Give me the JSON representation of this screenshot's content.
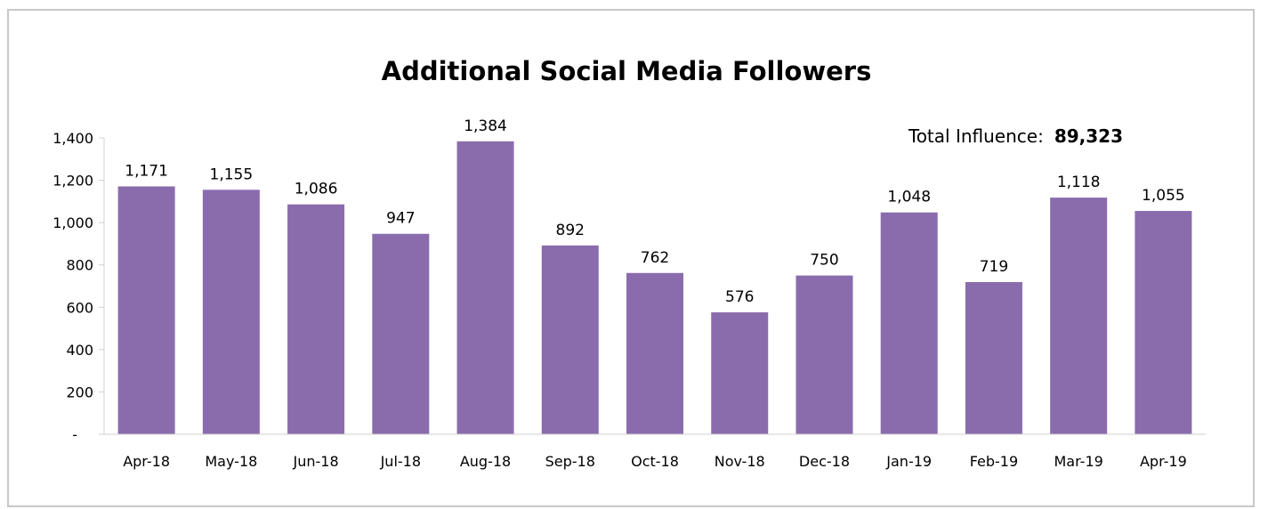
{
  "chart_data": {
    "type": "bar",
    "title": "Additional Social Media Followers",
    "xlabel": "",
    "ylabel": "",
    "categories": [
      "Apr-18",
      "May-18",
      "Jun-18",
      "Jul-18",
      "Aug-18",
      "Sep-18",
      "Oct-18",
      "Nov-18",
      "Dec-18",
      "Jan-19",
      "Feb-19",
      "Mar-19",
      "Apr-19"
    ],
    "values": [
      1171,
      1155,
      1086,
      947,
      1384,
      892,
      762,
      576,
      750,
      1048,
      719,
      1118,
      1055
    ],
    "data_labels": [
      "1,171",
      "1,155",
      "1,086",
      "947",
      "1,384",
      "892",
      "762",
      "576",
      "750",
      "1,048",
      "719",
      "1,118",
      "1,055"
    ],
    "ylim": [
      0,
      1400
    ],
    "y_ticks": [
      {
        "value": 0,
        "label": "-"
      },
      {
        "value": 200,
        "label": "200"
      },
      {
        "value": 400,
        "label": "400"
      },
      {
        "value": 600,
        "label": "600"
      },
      {
        "value": 800,
        "label": "800"
      },
      {
        "value": 1000,
        "label": "1,000"
      },
      {
        "value": 1200,
        "label": "1,200"
      },
      {
        "value": 1400,
        "label": "1,400"
      }
    ],
    "grid": false,
    "legend": "none",
    "bar_color": "#8a6cad",
    "annotation": {
      "label": "Total Influence:",
      "value": "89,323",
      "placement": "top-right"
    }
  }
}
